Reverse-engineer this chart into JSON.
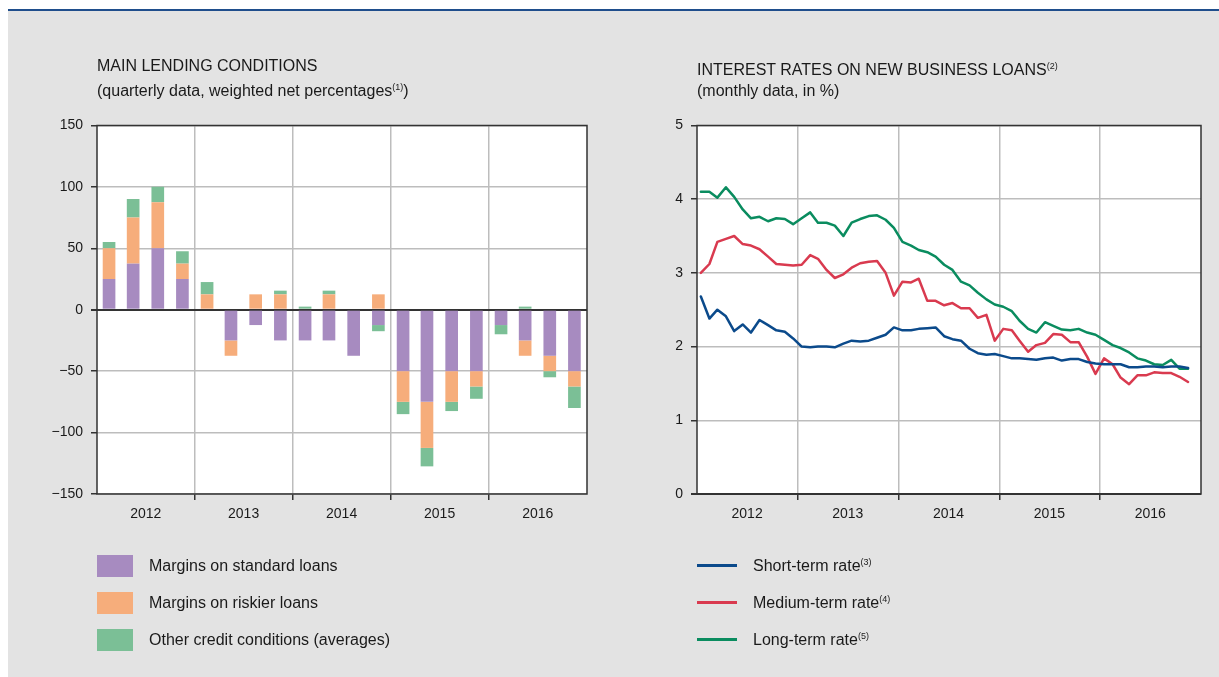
{
  "chart_data": [
    {
      "type": "bar",
      "title": "MAIN LENDING CONDITIONS",
      "subtitle": "(quarterly data, weighted net percentages$^{(1)}$)",
      "stacked": true,
      "grid": true,
      "legend": "bottom",
      "x": [
        "2012-02-15",
        "2012-05-15",
        "2012-08-15",
        "2012-11-15",
        "2013-02-15",
        "2013-05-15",
        "2013-08-15",
        "2013-11-15",
        "2014-02-15",
        "2014-05-15",
        "2014-08-15",
        "2014-11-15",
        "2015-02-15",
        "2015-05-15",
        "2015-08-15",
        "2015-11-15",
        "2016-02-15",
        "2016-05-15",
        "2016-08-15",
        "2016-11-15"
      ],
      "xlim": [
        "2012",
        "2017"
      ],
      "xticks": [
        {
          "value": "2012-07-01",
          "label": "2012"
        },
        {
          "value": "2013",
          "label": null
        },
        {
          "value": "2013-07-01",
          "label": "2013"
        },
        {
          "value": "2014",
          "label": null
        },
        {
          "value": "2014-07-01",
          "label": "2014"
        },
        {
          "value": "2015",
          "label": null
        },
        {
          "value": "2015-07-01",
          "label": "2015"
        },
        {
          "value": "2016",
          "label": null
        },
        {
          "value": "2016-07-01",
          "label": "2016"
        }
      ],
      "ylim": [
        -150,
        150
      ],
      "yticks": [
        {
          "value": -150,
          "label": "−150"
        },
        {
          "value": -100,
          "label": "−100"
        },
        {
          "value": -50,
          "label": "−50"
        },
        0,
        50,
        100,
        150
      ],
      "series": [
        {
          "name": "Margins on standard loans",
          "color": "#a78bc0",
          "values": [
            25,
            37.5,
            50,
            25,
            0,
            -25,
            -12.5,
            -25,
            -25,
            -25,
            -37.5,
            -12.5,
            -50,
            -75,
            -50,
            -50,
            -12.5,
            -25,
            -37.5,
            -50
          ]
        },
        {
          "name": "Margins on riskier loans",
          "color": "#f6ad7b",
          "values": [
            25,
            37.5,
            37.5,
            12.5,
            12.5,
            -12.5,
            12.5,
            12.5,
            0,
            12.5,
            0,
            12.5,
            -25,
            -37.5,
            -25,
            -12.5,
            0,
            -12.5,
            -12.5,
            -12.5
          ]
        },
        {
          "name": "Other credit conditions (averages)",
          "color": "#7bbf96",
          "values": [
            5,
            15,
            12.5,
            10,
            10,
            0,
            0,
            3,
            2.5,
            3,
            0,
            -5,
            -10,
            -15,
            -7.5,
            -10,
            -7.5,
            2.5,
            -5,
            -17.5
          ]
        }
      ]
    },
    {
      "type": "line",
      "title": "INTEREST RATES ON NEW BUSINESS LOANS$^{(2)}$",
      "subtitle": "(monthly data, in %)",
      "grid": true,
      "legend": "bottom",
      "x": [
        "2012-01-15",
        "2012-02-15",
        "2012-03-15",
        "2012-04-15",
        "2012-05-15",
        "2012-06-15",
        "2012-07-15",
        "2012-08-15",
        "2012-09-15",
        "2012-10-15",
        "2012-11-15",
        "2012-12-15",
        "2013-01-15",
        "2013-02-15",
        "2013-03-15",
        "2013-04-15",
        "2013-05-15",
        "2013-06-15",
        "2013-07-15",
        "2013-08-15",
        "2013-09-15",
        "2013-10-15",
        "2013-11-15",
        "2013-12-15",
        "2014-01-15",
        "2014-02-15",
        "2014-03-15",
        "2014-04-15",
        "2014-05-15",
        "2014-06-15",
        "2014-07-15",
        "2014-08-15",
        "2014-09-15",
        "2014-10-15",
        "2014-11-15",
        "2014-12-15",
        "2015-01-15",
        "2015-02-15",
        "2015-03-15",
        "2015-04-15",
        "2015-05-15",
        "2015-06-15",
        "2015-07-15",
        "2015-08-15",
        "2015-09-15",
        "2015-10-15",
        "2015-11-15",
        "2015-12-15",
        "2016-01-15",
        "2016-02-15",
        "2016-03-15",
        "2016-04-15",
        "2016-05-15",
        "2016-06-15",
        "2016-07-15",
        "2016-08-15",
        "2016-09-15",
        "2016-10-15",
        "2016-11-15"
      ],
      "xlim": [
        "2012",
        "2017"
      ],
      "xticks": [
        {
          "value": "2012-07-01",
          "label": "2012"
        },
        {
          "value": "2013",
          "label": null
        },
        {
          "value": "2013-07-01",
          "label": "2013"
        },
        {
          "value": "2014",
          "label": null
        },
        {
          "value": "2014-07-01",
          "label": "2014"
        },
        {
          "value": "2015",
          "label": null
        },
        {
          "value": "2015-07-01",
          "label": "2015"
        },
        {
          "value": "2016",
          "label": null
        },
        {
          "value": "2016-07-01",
          "label": "2016"
        }
      ],
      "ylim": [
        0,
        5
      ],
      "yticks": [
        0,
        1,
        2,
        3,
        4,
        5
      ],
      "series": [
        {
          "name": "Short-term rate$^{(3)}$",
          "color": "#0b4a8b",
          "values": [
            2.68,
            2.38,
            2.5,
            2.41,
            2.21,
            2.3,
            2.19,
            2.36,
            2.29,
            2.22,
            2.2,
            2.11,
            2.0,
            1.99,
            2.0,
            2.0,
            1.99,
            2.04,
            2.08,
            2.07,
            2.08,
            2.12,
            2.16,
            2.26,
            2.22,
            2.22,
            2.24,
            2.25,
            2.26,
            2.14,
            2.1,
            2.08,
            1.97,
            1.91,
            1.89,
            1.9,
            1.87,
            1.84,
            1.84,
            1.83,
            1.82,
            1.84,
            1.85,
            1.81,
            1.83,
            1.83,
            1.79,
            1.77,
            1.76,
            1.76,
            1.76,
            1.72,
            1.72,
            1.73,
            1.73,
            1.72,
            1.73,
            1.73,
            1.71
          ]
        },
        {
          "name": "Medium-term rate$^{(4)}$",
          "color": "#d93a4f",
          "values": [
            3.0,
            3.12,
            3.42,
            3.46,
            3.5,
            3.39,
            3.37,
            3.32,
            3.22,
            3.12,
            3.11,
            3.1,
            3.11,
            3.24,
            3.19,
            3.04,
            2.93,
            2.98,
            3.07,
            3.13,
            3.15,
            3.16,
            3.0,
            2.69,
            2.88,
            2.87,
            2.92,
            2.62,
            2.62,
            2.56,
            2.59,
            2.52,
            2.52,
            2.39,
            2.43,
            2.08,
            2.24,
            2.22,
            2.08,
            1.93,
            2.02,
            2.05,
            2.17,
            2.16,
            2.06,
            2.06,
            1.86,
            1.63,
            1.84,
            1.76,
            1.58,
            1.49,
            1.61,
            1.61,
            1.65,
            1.64,
            1.64,
            1.59,
            1.52
          ]
        },
        {
          "name": "Long-term rate$^{(5)}$",
          "color": "#0a8c5f",
          "values": [
            4.1,
            4.1,
            4.02,
            4.16,
            4.03,
            3.86,
            3.74,
            3.76,
            3.7,
            3.74,
            3.73,
            3.66,
            3.74,
            3.82,
            3.68,
            3.68,
            3.64,
            3.5,
            3.68,
            3.73,
            3.77,
            3.78,
            3.72,
            3.61,
            3.42,
            3.37,
            3.31,
            3.28,
            3.22,
            3.11,
            3.04,
            2.88,
            2.83,
            2.73,
            2.64,
            2.57,
            2.54,
            2.48,
            2.35,
            2.24,
            2.19,
            2.33,
            2.28,
            2.23,
            2.22,
            2.24,
            2.19,
            2.16,
            2.09,
            2.02,
            1.98,
            1.92,
            1.84,
            1.81,
            1.76,
            1.75,
            1.82,
            1.7,
            1.7
          ]
        }
      ]
    }
  ]
}
